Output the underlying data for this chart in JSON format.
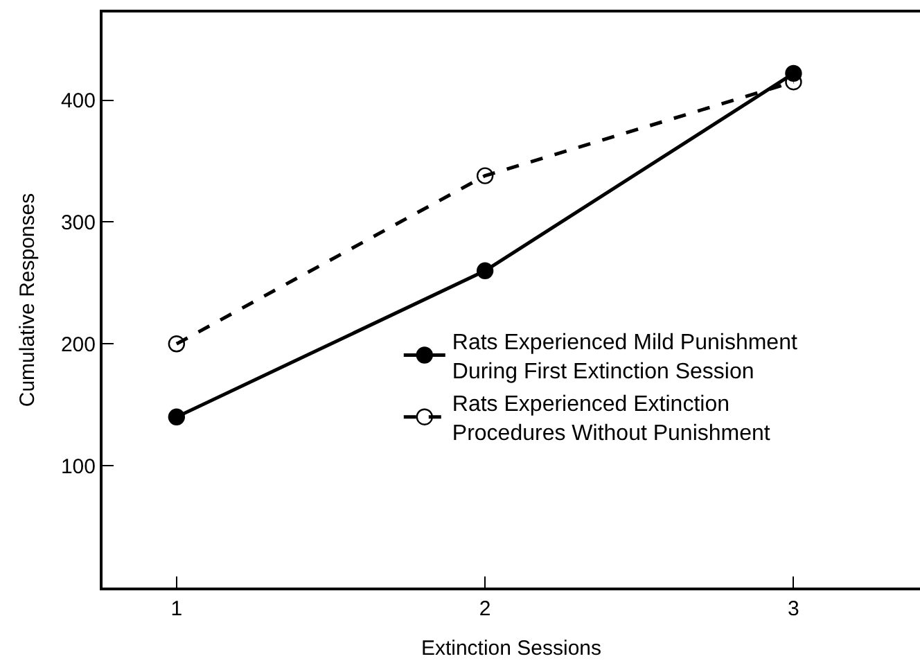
{
  "chart_data": {
    "type": "line",
    "xlabel": "Extinction Sessions",
    "ylabel": "Cumulative Responses",
    "x": [
      1,
      2,
      3
    ],
    "series": [
      {
        "name": "Rats Experienced Mild Punishment During First Extinction Session",
        "color": "#000000",
        "values": [
          140,
          260,
          422
        ],
        "marker": "circle",
        "line_style": "solid"
      },
      {
        "name": "Rats Experienced Extinction Procedures Without Punishment",
        "color": "#000000",
        "values": [
          200,
          338,
          415
        ],
        "marker": "circle-open",
        "line_style": "dashed"
      }
    ],
    "xlim": [
      0.76,
      3.41
    ],
    "xticks": [
      1,
      2,
      3
    ],
    "ylim": [
      0,
      472
    ],
    "yticks": [
      100,
      200,
      300,
      400
    ],
    "legend": "right"
  }
}
